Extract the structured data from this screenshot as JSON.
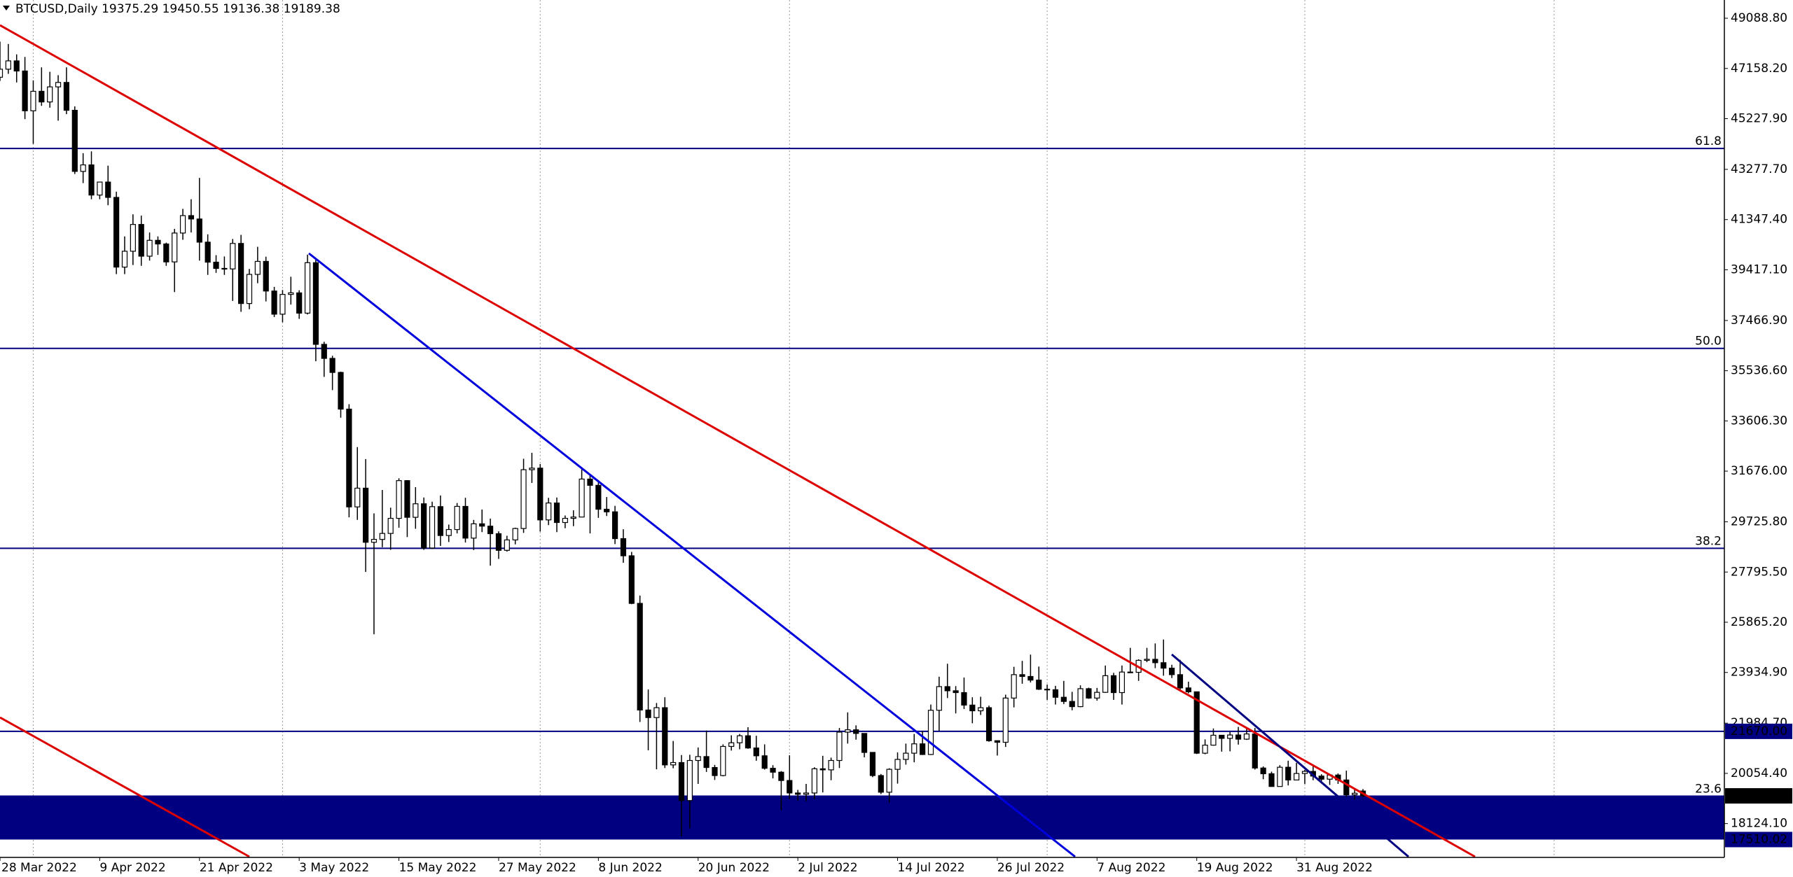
{
  "chart_data": {
    "type": "candlestick",
    "title": "BTCUSD,Daily",
    "colors": {
      "bull": "#ffffff",
      "bear": "#000000",
      "outline": "#000000",
      "level": "#000080",
      "zone": "#000080",
      "last": "#000000"
    },
    "categories": [
      "28 Mar 2022",
      null,
      null,
      null,
      null,
      null,
      null,
      null,
      null,
      null,
      null,
      null,
      "9 Apr 2022",
      null,
      null,
      null,
      null,
      null,
      null,
      null,
      null,
      null,
      null,
      null,
      "21 Apr 2022",
      null,
      null,
      null,
      null,
      null,
      null,
      null,
      null,
      null,
      null,
      null,
      "3 May 2022",
      null,
      null,
      null,
      null,
      null,
      null,
      null,
      null,
      null,
      null,
      null,
      "15 May 2022",
      null,
      null,
      null,
      null,
      null,
      null,
      null,
      null,
      null,
      null,
      null,
      "27 May 2022",
      null,
      null,
      null,
      null,
      null,
      null,
      null,
      null,
      null,
      null,
      null,
      "8 Jun 2022",
      null,
      null,
      null,
      null,
      null,
      null,
      null,
      null,
      null,
      null,
      null,
      "20 Jun 2022",
      null,
      null,
      null,
      null,
      null,
      null,
      null,
      null,
      null,
      null,
      null,
      "2 Jul 2022",
      null,
      null,
      null,
      null,
      null,
      null,
      null,
      null,
      null,
      null,
      null,
      "14 Jul 2022",
      null,
      null,
      null,
      null,
      null,
      null,
      null,
      null,
      null,
      null,
      null,
      "26 Jul 2022",
      null,
      null,
      null,
      null,
      null,
      null,
      null,
      null,
      null,
      null,
      null,
      "7 Aug 2022",
      null,
      null,
      null,
      null,
      null,
      null,
      null,
      null,
      null,
      null,
      null,
      "19 Aug 2022",
      null,
      null,
      null,
      null,
      null,
      null,
      null,
      null,
      null,
      null,
      null,
      "31 Aug 2022",
      null,
      null,
      null,
      null,
      null,
      null,
      null,
      null
    ],
    "open": [
      46820,
      47130,
      47450,
      47060,
      45530,
      46280,
      45870,
      46450,
      46620,
      45550,
      43200,
      43450,
      42290,
      42790,
      42200,
      39520,
      40130,
      41160,
      39940,
      40550,
      40410,
      39720,
      40830,
      41500,
      41370,
      40480,
      39710,
      39470,
      39450,
      40430,
      38120,
      39240,
      39740,
      38600,
      37710,
      38470,
      38530,
      37750,
      39690,
      36550,
      36010,
      35470,
      34060,
      30300,
      31020,
      28940,
      29050,
      29280,
      29860,
      31310,
      29900,
      30420,
      28720,
      30310,
      29200,
      29430,
      30320,
      29100,
      29650,
      29560,
      29270,
      28630,
      29030,
      29470,
      31730,
      31790,
      29800,
      30450,
      29700,
      29860,
      29910,
      31370,
      31130,
      30210,
      30110,
      29080,
      28420,
      26590,
      22490,
      22200,
      22580,
      20380,
      20470,
      19010,
      20550,
      20700,
      20280,
      19970,
      21090,
      21230,
      21500,
      21030,
      20730,
      20250,
      20100,
      19780,
      19300,
      19250,
      19300,
      20230,
      20190,
      20550,
      21640,
      21730,
      21590,
      20860,
      19970,
      19330,
      20210,
      20590,
      20830,
      21190,
      20780,
      22480,
      23390,
      23230,
      23160,
      22680,
      22460,
      22580,
      21310,
      21250,
      22950,
      23850,
      23780,
      23640,
      23290,
      23270,
      22980,
      22820,
      22620,
      23310,
      22950,
      23170,
      23810,
      23160,
      23950,
      23940,
      24400,
      24440,
      24310,
      24100,
      23850,
      23340,
      23190,
      20830,
      21140,
      21520,
      21400,
      21530,
      21370,
      21570,
      20260,
      20040,
      19550,
      20290,
      19800,
      20050,
      20130,
      19950,
      19830,
      19990,
      19800,
      19230,
      19375.29
    ],
    "high": [
      48190,
      48100,
      47700,
      47600,
      46700,
      47200,
      47030,
      46900,
      47200,
      45700,
      43900,
      43970,
      42800,
      43420,
      42420,
      40700,
      41550,
      41500,
      40850,
      40700,
      40460,
      40990,
      41760,
      42130,
      42950,
      40780,
      39980,
      39930,
      40600,
      40760,
      39450,
      40300,
      39920,
      38760,
      38640,
      39150,
      38630,
      40000,
      39830,
      36650,
      36110,
      35500,
      34250,
      32600,
      32140,
      30050,
      30950,
      30270,
      31400,
      31330,
      31060,
      30660,
      30500,
      30740,
      29620,
      30450,
      30650,
      29800,
      30200,
      29850,
      29360,
      29190,
      29500,
      32150,
      32380,
      31950,
      30650,
      30660,
      29970,
      30170,
      31740,
      31550,
      31330,
      30680,
      30340,
      29440,
      28570,
      26890,
      23280,
      22760,
      22980,
      21300,
      20760,
      20770,
      21050,
      21700,
      20380,
      21170,
      21520,
      21570,
      21830,
      21500,
      21170,
      20370,
      20140,
      20750,
      19420,
      19650,
      20290,
      20730,
      20660,
      21800,
      22400,
      21900,
      21600,
      20860,
      20030,
      20250,
      20860,
      21200,
      21570,
      21680,
      22700,
      23770,
      24270,
      23410,
      23740,
      22980,
      23000,
      22660,
      21320,
      23080,
      24150,
      24380,
      24620,
      24160,
      23470,
      23420,
      23610,
      23190,
      23440,
      23350,
      23340,
      24200,
      23920,
      24200,
      24880,
      24440,
      24880,
      25050,
      25200,
      24230,
      24420,
      23580,
      23190,
      21360,
      21780,
      21530,
      21650,
      21840,
      21810,
      21800,
      20320,
      20120,
      20370,
      20540,
      20460,
      20190,
      20400,
      20020,
      20020,
      20050,
      20160,
      19450,
      19450.55
    ],
    "low": [
      46680,
      46950,
      46620,
      45210,
      44260,
      45720,
      45650,
      45150,
      45400,
      43100,
      42750,
      42130,
      42130,
      41900,
      39250,
      39250,
      39600,
      39570,
      39770,
      39990,
      39570,
      38560,
      40570,
      40850,
      39770,
      39220,
      39300,
      39220,
      38220,
      37800,
      37900,
      38900,
      38200,
      37600,
      37400,
      38080,
      37530,
      37700,
      35900,
      35300,
      34790,
      33730,
      29900,
      29800,
      27800,
      25400,
      28750,
      28650,
      29500,
      29140,
      29460,
      28650,
      28680,
      28800,
      28950,
      29280,
      28930,
      28640,
      29330,
      28040,
      28300,
      28580,
      28860,
      29300,
      31220,
      29350,
      29600,
      29330,
      29480,
      29560,
      29900,
      29280,
      29880,
      29950,
      28870,
      28150,
      26560,
      22030,
      20940,
      20210,
      20260,
      20250,
      17630,
      17940,
      19650,
      20110,
      19800,
      19940,
      20930,
      20980,
      21000,
      20540,
      20200,
      19860,
      18630,
      19060,
      19000,
      18980,
      19060,
      19320,
      19790,
      20260,
      21200,
      21350,
      20670,
      19910,
      19260,
      18930,
      19660,
      20390,
      20480,
      20760,
      20760,
      21690,
      22950,
      22360,
      22530,
      21980,
      22300,
      21270,
      20740,
      21070,
      22590,
      23500,
      23550,
      23260,
      22880,
      22700,
      22720,
      22480,
      22600,
      22920,
      22850,
      23150,
      22880,
      22700,
      23910,
      23610,
      24330,
      24100,
      23810,
      23720,
      23280,
      23130,
      20800,
      20790,
      21120,
      20890,
      20900,
      21160,
      21340,
      20200,
      19830,
      19540,
      19570,
      19590,
      19800,
      19650,
      19790,
      19670,
      19610,
      19650,
      19150,
      19050,
      19136.38
    ],
    "close": [
      47130,
      47450,
      47060,
      45530,
      46280,
      45870,
      46450,
      46620,
      45550,
      43200,
      43450,
      42290,
      42790,
      42200,
      39520,
      40130,
      41160,
      39940,
      40550,
      40410,
      39720,
      40830,
      41500,
      41370,
      40480,
      39710,
      39470,
      39450,
      40430,
      38120,
      39240,
      39740,
      38600,
      37710,
      38470,
      38530,
      37750,
      39690,
      36550,
      36010,
      35470,
      34060,
      30300,
      31020,
      28940,
      29050,
      29280,
      29860,
      31310,
      29900,
      30420,
      28720,
      30310,
      29200,
      29430,
      30320,
      29100,
      29650,
      29560,
      29270,
      28630,
      29030,
      29470,
      31730,
      31790,
      29800,
      30450,
      29700,
      29860,
      29910,
      31370,
      31130,
      30210,
      30110,
      29080,
      28420,
      26590,
      22490,
      22200,
      22580,
      20380,
      20470,
      19010,
      20550,
      20700,
      20280,
      19970,
      21090,
      21230,
      21500,
      21030,
      20730,
      20250,
      20100,
      19780,
      19300,
      19250,
      19300,
      20230,
      20190,
      20550,
      21640,
      21730,
      21590,
      20860,
      19970,
      19330,
      20210,
      20590,
      20830,
      21190,
      20780,
      22480,
      23390,
      23230,
      23160,
      22680,
      22460,
      22580,
      21310,
      21250,
      22950,
      23850,
      23780,
      23640,
      23290,
      23270,
      22980,
      22820,
      22620,
      23310,
      22950,
      23170,
      23810,
      23160,
      23950,
      23940,
      24400,
      24440,
      24310,
      24100,
      23850,
      23340,
      23190,
      20830,
      21140,
      21520,
      21400,
      21530,
      21370,
      21570,
      20260,
      20040,
      19550,
      20290,
      19800,
      20050,
      20130,
      19950,
      19830,
      19990,
      19800,
      19230,
      19290,
      19189.38
    ],
    "ylim": [
      16850,
      49790
    ],
    "yticks": [
      {
        "value": 49088.8,
        "label": "49088.80"
      },
      {
        "value": 47158.2,
        "label": "47158.20"
      },
      {
        "value": 45227.9,
        "label": "45227.90"
      },
      {
        "value": 43277.7,
        "label": "43277.70"
      },
      {
        "value": 41347.4,
        "label": "41347.40"
      },
      {
        "value": 39417.1,
        "label": "39417.10"
      },
      {
        "value": 37466.9,
        "label": "37466.90"
      },
      {
        "value": 35536.6,
        "label": "35536.60"
      },
      {
        "value": 33606.3,
        "label": "33606.30"
      },
      {
        "value": 31676,
        "label": "31676.00"
      },
      {
        "value": 29725.8,
        "label": "29725.80"
      },
      {
        "value": 27795.5,
        "label": "27795.50"
      },
      {
        "value": 25865.2,
        "label": "25865.20"
      },
      {
        "value": 23934.9,
        "label": "23934.90"
      },
      {
        "value": 21984.7,
        "label": "21984.70"
      },
      {
        "value": 20054.4,
        "label": "20054.40"
      },
      {
        "value": 18124.1,
        "label": "18124.10"
      }
    ],
    "fib_levels": [
      {
        "name": "61.8",
        "value": 44082
      },
      {
        "name": "50.0",
        "value": 36395
      },
      {
        "name": "38.2",
        "value": 28709
      },
      {
        "name": "23.6",
        "value": 19178
      }
    ],
    "price_line": {
      "value": 21670,
      "label": "21670.00"
    },
    "zone": {
      "from": 17510.02,
      "to": 19150
    }
  }
}
